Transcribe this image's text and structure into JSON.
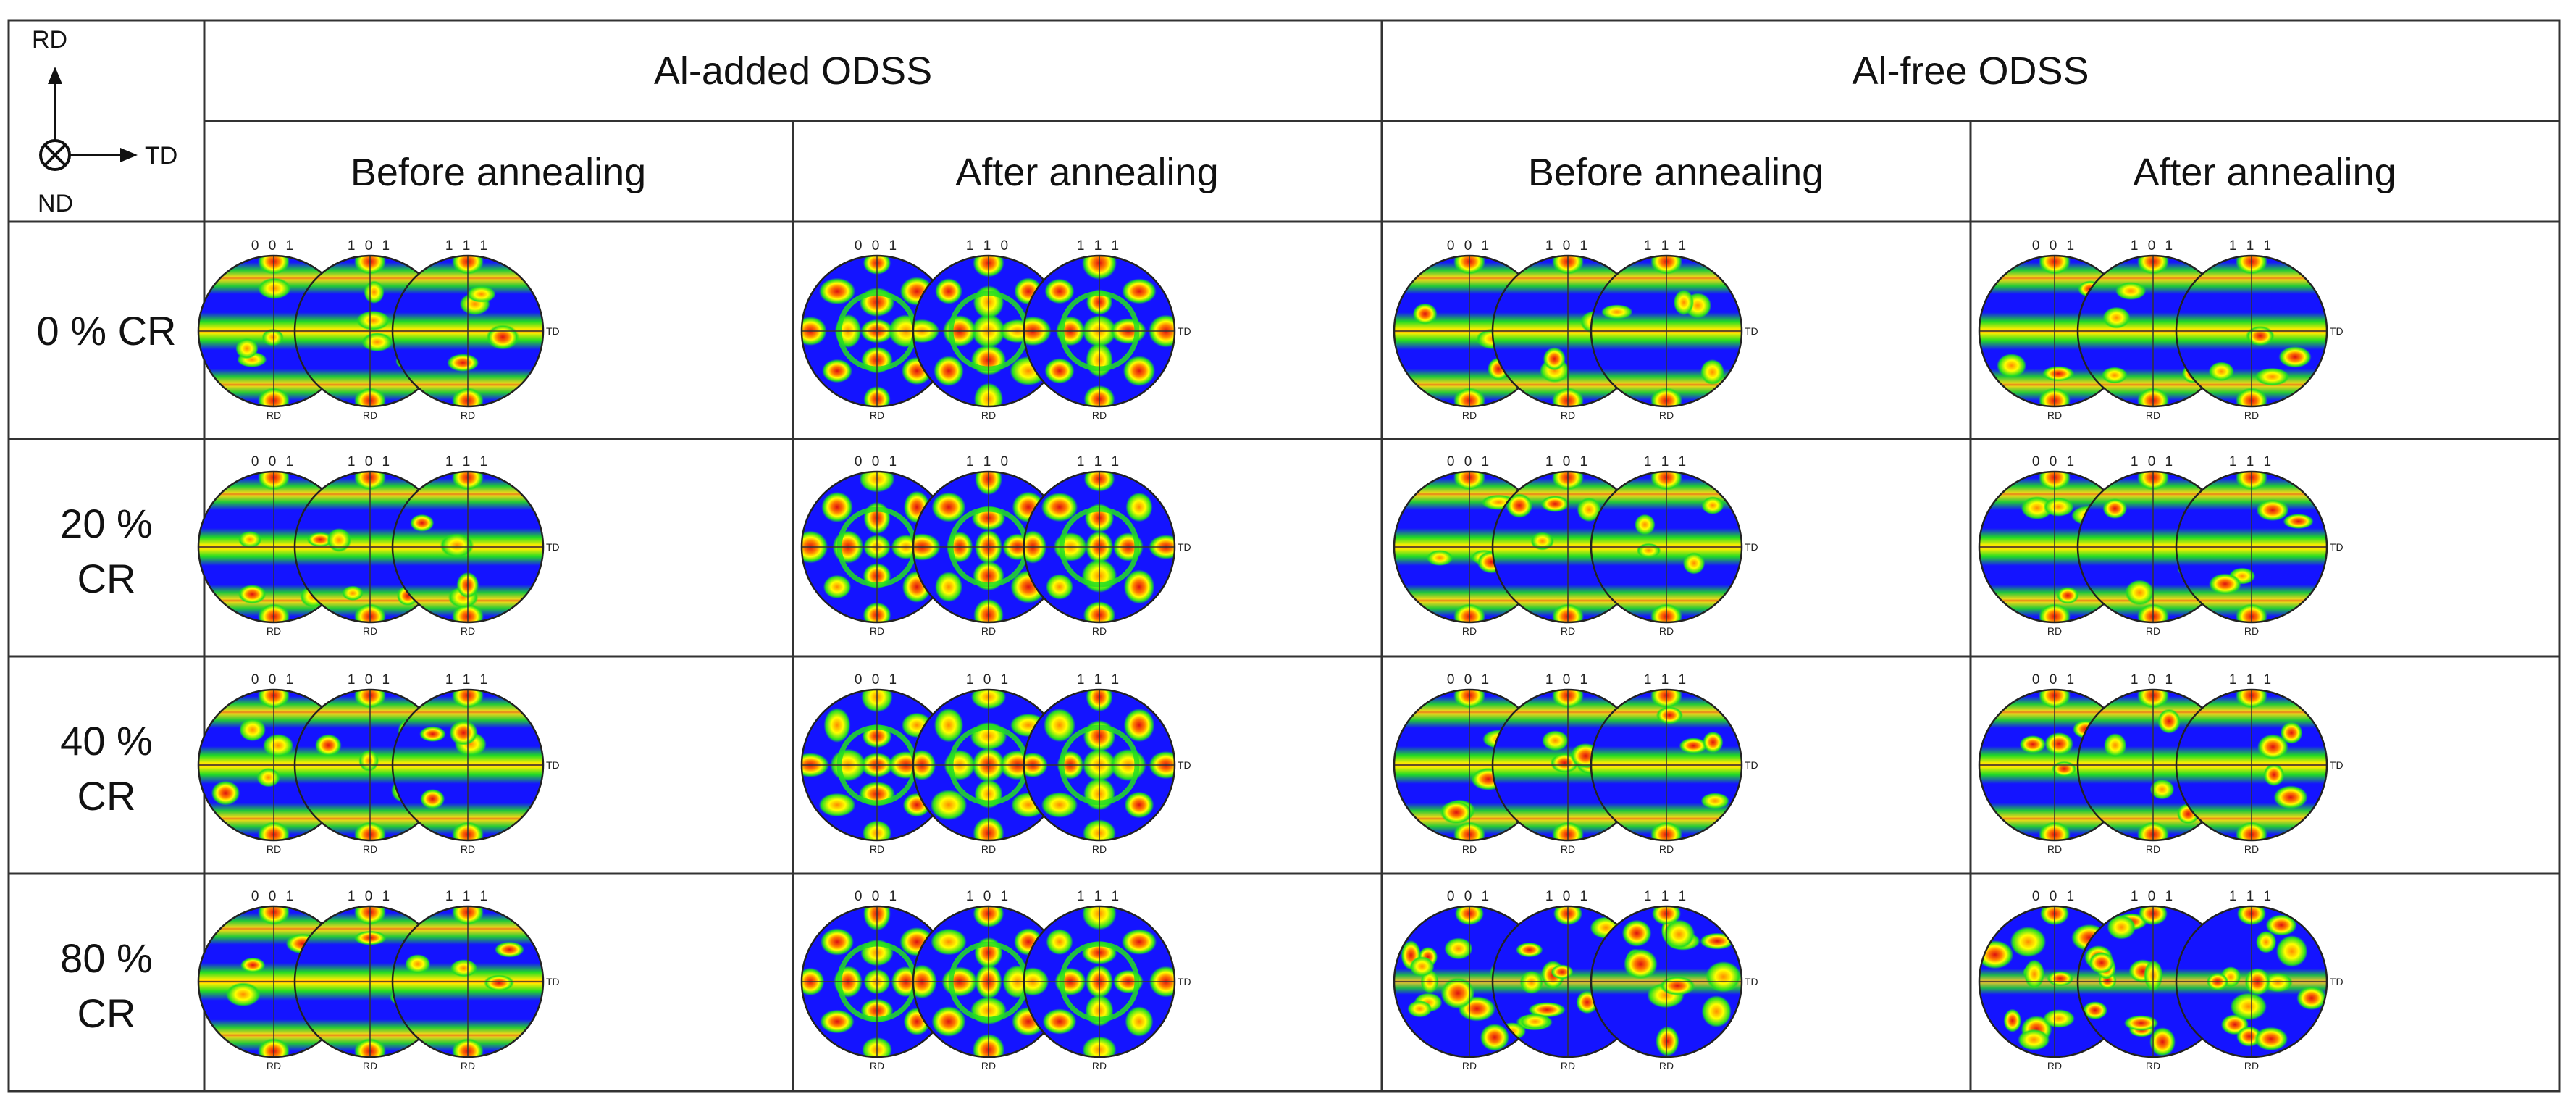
{
  "legend_key": {
    "rd": "RD",
    "td": "TD",
    "nd": "ND"
  },
  "groups": [
    {
      "label": "Al-added ODSS",
      "conditions": [
        "Before annealing",
        "After annealing"
      ]
    },
    {
      "label": "Al-free ODSS",
      "conditions": [
        "Before annealing",
        "After annealing"
      ]
    }
  ],
  "rows": [
    {
      "label": [
        "0 % CR"
      ]
    },
    {
      "label": [
        "20 %",
        "CR"
      ]
    },
    {
      "label": [
        "40 %",
        "CR"
      ]
    },
    {
      "label": [
        "80 %",
        "CR"
      ]
    }
  ],
  "pole_figure_labels": [
    [
      [
        "0 0 1",
        "1 0 1",
        "1 1 1"
      ],
      [
        "0 0 1",
        "1 1 0",
        "1 1 1"
      ],
      [
        "0 0 1",
        "1 0 1",
        "1 1 1"
      ],
      [
        "0 0 1",
        "1 0 1",
        "1 1 1"
      ]
    ],
    [
      [
        "0 0 1",
        "1 0 1",
        "1 1 1"
      ],
      [
        "0 0 1",
        "1 1 0",
        "1 1 1"
      ],
      [
        "0 0 1",
        "1 0 1",
        "1 1 1"
      ],
      [
        "0 0 1",
        "1 0 1",
        "1 1 1"
      ]
    ],
    [
      [
        "0 0 1",
        "1 0 1",
        "1 1 1"
      ],
      [
        "0 0 1",
        "1 0 1",
        "1 1 1"
      ],
      [
        "0 0 1",
        "1 0 1",
        "1 1 1"
      ],
      [
        "0 0 1",
        "1 0 1",
        "1 1 1"
      ]
    ],
    [
      [
        "0 0 1",
        "1 0 1",
        "1 1 1"
      ],
      [
        "0 0 1",
        "1 0 1",
        "1 1 1"
      ],
      [
        "0 0 1",
        "1 0 1",
        "1 1 1"
      ],
      [
        "0 0 1",
        "1 0 1",
        "1 1 1"
      ]
    ]
  ],
  "axis_labels": {
    "bottom": "RD",
    "right": "TD"
  },
  "colors": {
    "background_intensity": "#1414ff",
    "low": "#22dd22",
    "mid": "#ffff00",
    "high": "#ff8800",
    "peak": "#dd1111"
  }
}
